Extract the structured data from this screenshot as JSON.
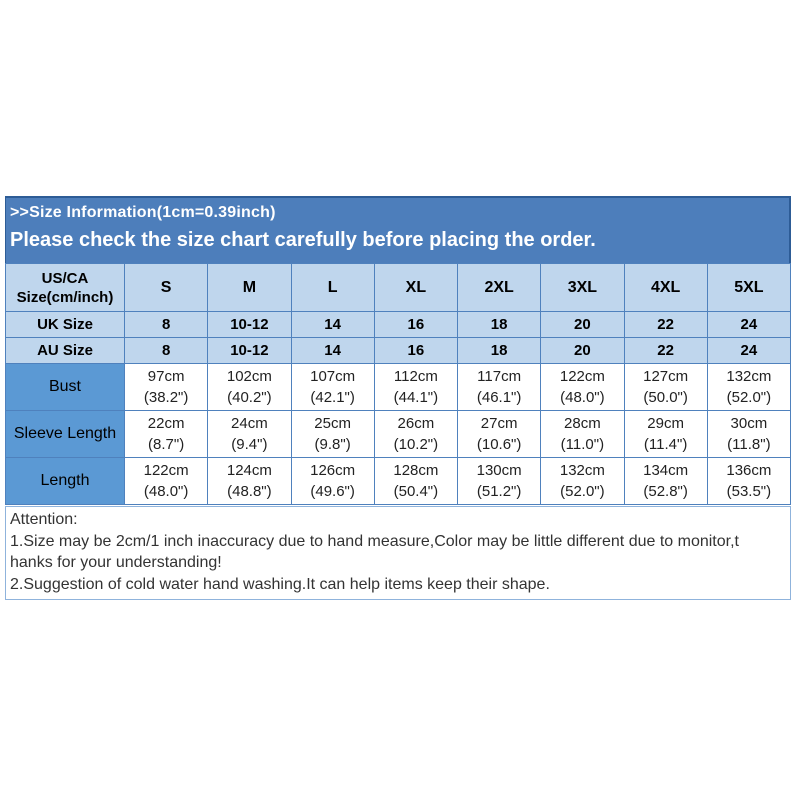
{
  "header": {
    "line1": ">>Size Information(1cm=0.39inch)",
    "line2": "Please check the size chart carefully before placing the order."
  },
  "size_table": {
    "corner_header": {
      "line1": "US/CA",
      "line2": "Size(cm/inch)"
    },
    "columns": [
      "S",
      "M",
      "L",
      "XL",
      "2XL",
      "3XL",
      "4XL",
      "5XL"
    ],
    "simple_rows": [
      {
        "label": "UK Size",
        "values": [
          "8",
          "10-12",
          "14",
          "16",
          "18",
          "20",
          "22",
          "24"
        ]
      },
      {
        "label": "AU Size",
        "values": [
          "8",
          "10-12",
          "14",
          "16",
          "18",
          "20",
          "22",
          "24"
        ]
      }
    ],
    "measure_rows": [
      {
        "label": "Bust",
        "values": [
          {
            "cm": "97cm",
            "inch": "(38.2\")"
          },
          {
            "cm": "102cm",
            "inch": "(40.2\")"
          },
          {
            "cm": "107cm",
            "inch": "(42.1\")"
          },
          {
            "cm": "112cm",
            "inch": "(44.1\")"
          },
          {
            "cm": "117cm",
            "inch": "(46.1\")"
          },
          {
            "cm": "122cm",
            "inch": "(48.0\")"
          },
          {
            "cm": "127cm",
            "inch": "(50.0\")"
          },
          {
            "cm": "132cm",
            "inch": "(52.0\")"
          }
        ]
      },
      {
        "label": "Sleeve Length",
        "values": [
          {
            "cm": "22cm",
            "inch": "(8.7\")"
          },
          {
            "cm": "24cm",
            "inch": "(9.4\")"
          },
          {
            "cm": "25cm",
            "inch": "(9.8\")"
          },
          {
            "cm": "26cm",
            "inch": "(10.2\")"
          },
          {
            "cm": "27cm",
            "inch": "(10.6\")"
          },
          {
            "cm": "28cm",
            "inch": "(11.0\")"
          },
          {
            "cm": "29cm",
            "inch": "(11.4\")"
          },
          {
            "cm": "30cm",
            "inch": "(11.8\")"
          }
        ]
      },
      {
        "label": "Length",
        "values": [
          {
            "cm": "122cm",
            "inch": "(48.0\")"
          },
          {
            "cm": "124cm",
            "inch": "(48.8\")"
          },
          {
            "cm": "126cm",
            "inch": "(49.6\")"
          },
          {
            "cm": "128cm",
            "inch": "(50.4\")"
          },
          {
            "cm": "130cm",
            "inch": "(51.2\")"
          },
          {
            "cm": "132cm",
            "inch": "(52.0\")"
          },
          {
            "cm": "134cm",
            "inch": "(52.8\")"
          },
          {
            "cm": "136cm",
            "inch": "(53.5\")"
          }
        ]
      }
    ]
  },
  "attention": {
    "lines": [
      "Attention:",
      "1.Size may be 2cm/1 inch inaccuracy due to hand measure,Color may be little different due to monitor,t",
      "hanks for your understanding!",
      "2.Suggestion of cold water hand washing.It can help items keep their shape."
    ]
  },
  "colors": {
    "banner_bg": "#4d7ebb",
    "banner_border": "#2d5c96",
    "table_grid": "#4f81bd",
    "header_cell_bg": "#bfd6ed",
    "measure_label_bg": "#5b99d4",
    "data_cell_bg": "#ffffff",
    "attention_border": "#8fb3dc",
    "banner_text": "#ffffff",
    "table_text": "#000000",
    "attention_text": "#333333"
  }
}
